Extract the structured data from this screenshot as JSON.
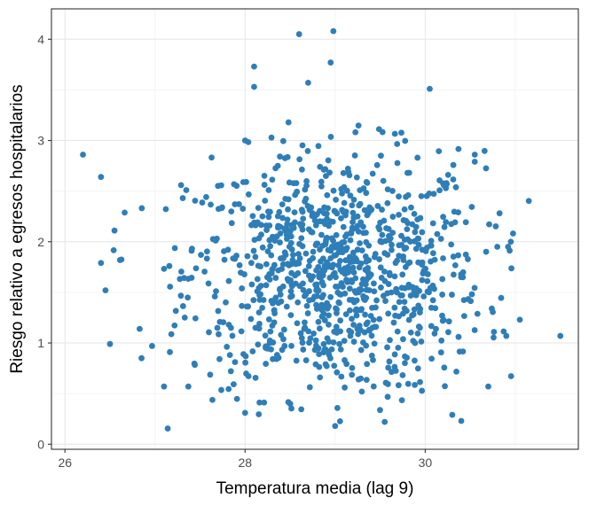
{
  "chart_data": {
    "type": "scatter",
    "title": "",
    "xlabel": "Temperatura media (lag 9)",
    "ylabel": "Riesgo relativo a egresos hospitalarios",
    "xlim": [
      25.85,
      31.7
    ],
    "ylim": [
      -0.05,
      4.3
    ],
    "x_ticks": [
      26,
      28,
      30
    ],
    "y_ticks": [
      0,
      1,
      2,
      3,
      4
    ],
    "grid": true,
    "legend": "none",
    "point_color": "#2E7EB8",
    "n_points": 1000,
    "points_note_generated": true,
    "points": []
  }
}
